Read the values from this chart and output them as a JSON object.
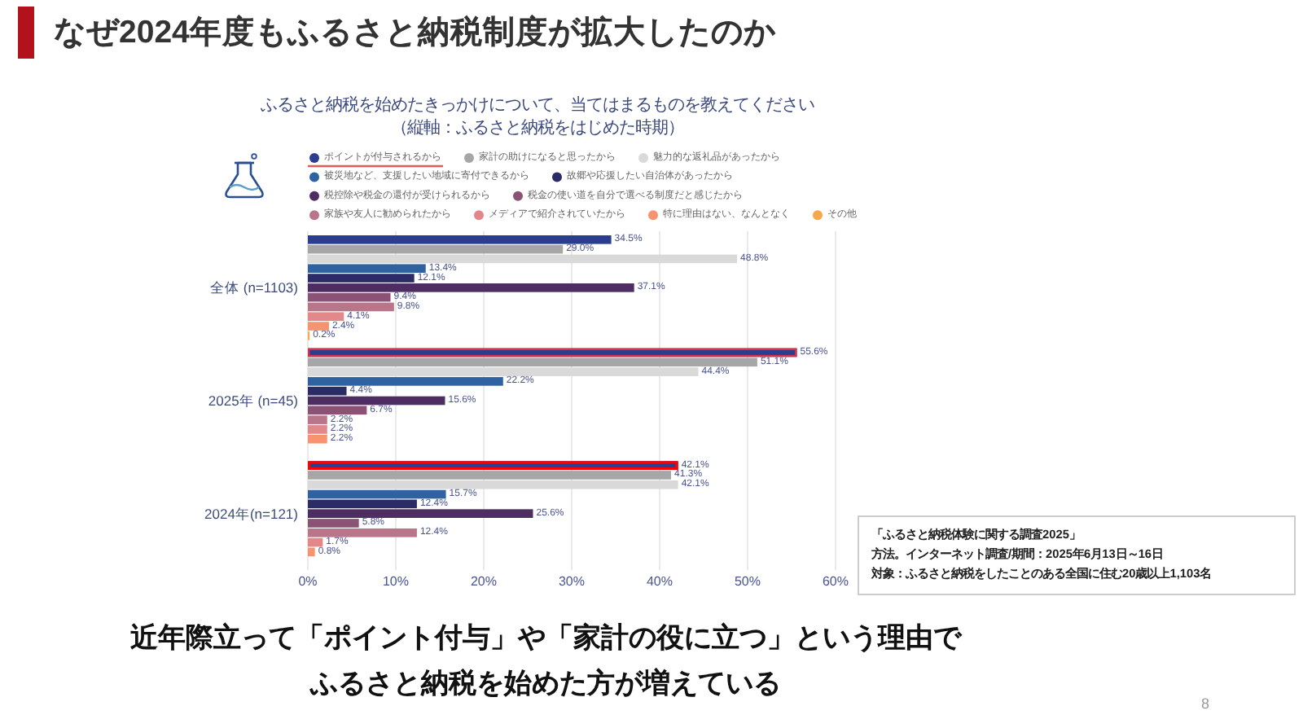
{
  "chart_data": {
    "type": "bar",
    "orientation": "horizontal",
    "title": "なぜ2024年度もふるさと納税制度が拡大したのか",
    "subtitle": "ふるさと納税を始めたきっかけについて、当てはまるものを教えてください",
    "categories": [
      "全体 (n=1103)",
      "2025年 (n=45)",
      "2024年(n=121)"
    ],
    "series": [
      {
        "name": "ポイントが付与されるから",
        "color": "#2b3d8f",
        "values": [
          34.5,
          55.6,
          42.1
        ],
        "value_labels": [
          "34.5%",
          "55.6%",
          "42.1%"
        ]
      },
      {
        "name": "家計の助けになると思ったから",
        "color": "#a6a6a6",
        "values": [
          29.0,
          51.1,
          41.3
        ],
        "value_labels": [
          "29.0%",
          "51.1%",
          "41.3%"
        ]
      },
      {
        "name": "魅力的な返礼品があったから",
        "color": "#d9d9d9",
        "values": [
          48.8,
          44.4,
          42.1
        ],
        "value_labels": [
          "48.8%",
          "44.4%",
          "42.1%"
        ]
      },
      {
        "name": "被災地など、支援したい地域に寄付できるから",
        "color": "#2e62a0",
        "values": [
          13.4,
          22.2,
          15.7
        ],
        "value_labels": [
          "13.4%",
          "22.2%",
          "15.7%"
        ]
      },
      {
        "name": "故郷や応援したい自治体があったから",
        "color": "#2b2c66",
        "values": [
          12.1,
          4.4,
          12.4
        ],
        "value_labels": [
          "12.1%",
          "4.4%",
          "12.4%"
        ]
      },
      {
        "name": "税控除や税金の還付が受けられるから",
        "color": "#4e2d62",
        "values": [
          37.1,
          15.6,
          25.6
        ],
        "value_labels": [
          "37.1%",
          "15.6%",
          "25.6%"
        ]
      },
      {
        "name": "税金の使い道を自分で選べる制度だと感じたから",
        "color": "#8a5274",
        "values": [
          9.4,
          6.7,
          5.8
        ],
        "value_labels": [
          "9.4%",
          "6.7%",
          "5.8%"
        ]
      },
      {
        "name": "家族や友人に勧められたから",
        "color": "#b9758a",
        "values": [
          9.8,
          2.2,
          12.4
        ],
        "value_labels": [
          "9.8%",
          "2.2%",
          "12.4%"
        ]
      },
      {
        "name": "メディアで紹介されていたから",
        "color": "#e2878a",
        "values": [
          4.1,
          2.2,
          1.7
        ],
        "value_labels": [
          "4.1%",
          "2.2%",
          "1.7%"
        ]
      },
      {
        "name": "特に理由はない、なんとなく",
        "color": "#f7936f",
        "values": [
          2.4,
          2.2,
          0.8
        ],
        "value_labels": [
          "2.4%",
          "2.2%",
          "0.8%"
        ]
      },
      {
        "name": "その他",
        "color": "#f6a84a",
        "values": [
          0.2,
          null,
          null
        ],
        "value_labels": [
          "0.2%",
          null,
          null
        ]
      }
    ],
    "xlim": [
      0,
      60
    ],
    "xticks": [
      {
        "value": 0,
        "label": "0%"
      },
      {
        "value": 10,
        "label": "10%"
      },
      {
        "value": 20,
        "label": "20%"
      },
      {
        "value": 30,
        "label": "30%"
      },
      {
        "value": 40,
        "label": "40%"
      },
      {
        "value": 50,
        "label": "50%"
      },
      {
        "value": 60,
        "label": "60%"
      }
    ],
    "grid": "x",
    "legend": "top",
    "annotations": [
      "（縦軸：ふるさと納税をはじめた時期）",
      "「ふるさと納税体験に関する調査2025」",
      "方法。インターネット調査/期間：2025年6月13日～16日",
      "対象：ふるさと納税をしたことのある全国に住む20歳以上1,103名",
      "近年際立って「ポイント付与」や「家計の役に立つ」という理由でふるさと納税を始めた方が増えている",
      "8"
    ]
  }
}
